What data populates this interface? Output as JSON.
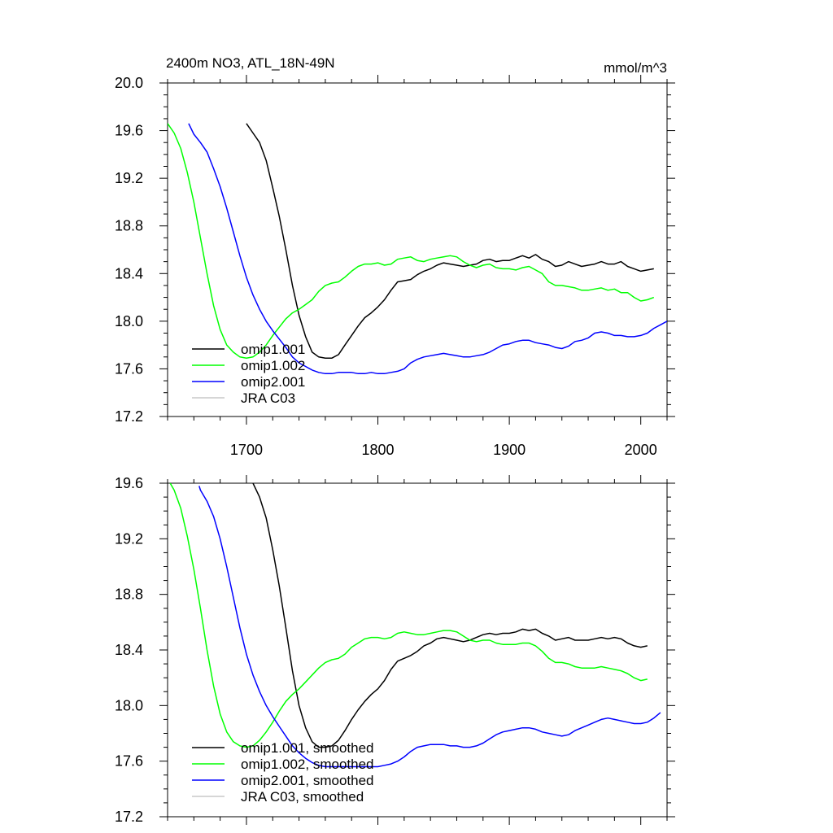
{
  "chart_data": [
    {
      "type": "line",
      "title_left": "2400m NO3, ATL_18N-49N",
      "title_right": "mmol/m^3",
      "xlim": [
        1640,
        2020
      ],
      "ylim": [
        17.2,
        20.0
      ],
      "x_ticks": [
        1700,
        1800,
        1900,
        2000
      ],
      "y_ticks": [
        17.2,
        17.6,
        18.0,
        18.4,
        18.8,
        19.2,
        19.6,
        20.0
      ],
      "y_tick_labels": [
        "17.2",
        "17.6",
        "18.0",
        "18.4",
        "18.8",
        "19.2",
        "19.6",
        "20.0"
      ],
      "x_tick_labels": [
        "1700",
        "1800",
        "1900",
        "2000"
      ],
      "show_x_tick_labels": true,
      "legend_position": "bottom-left",
      "series": [
        {
          "name": "omip1.001",
          "color": "#000000",
          "x": [
            1700,
            1705,
            1710,
            1715,
            1720,
            1725,
            1730,
            1735,
            1740,
            1745,
            1750,
            1755,
            1760,
            1765,
            1770,
            1775,
            1780,
            1785,
            1790,
            1795,
            1800,
            1805,
            1810,
            1815,
            1820,
            1825,
            1830,
            1835,
            1840,
            1845,
            1850,
            1855,
            1860,
            1865,
            1870,
            1875,
            1880,
            1885,
            1890,
            1895,
            1900,
            1905,
            1910,
            1915,
            1920,
            1925,
            1930,
            1935,
            1940,
            1945,
            1950,
            1955,
            1960,
            1965,
            1970,
            1975,
            1980,
            1985,
            1990,
            1995,
            2000,
            2005,
            2010
          ],
          "y": [
            19.66,
            19.58,
            19.5,
            19.35,
            19.12,
            18.88,
            18.6,
            18.3,
            18.05,
            17.87,
            17.74,
            17.7,
            17.69,
            17.69,
            17.72,
            17.8,
            17.88,
            17.96,
            18.03,
            18.07,
            18.12,
            18.18,
            18.26,
            18.33,
            18.34,
            18.35,
            18.39,
            18.42,
            18.44,
            18.47,
            18.49,
            18.48,
            18.47,
            18.46,
            18.47,
            18.48,
            18.51,
            18.52,
            18.5,
            18.51,
            18.51,
            18.53,
            18.55,
            18.53,
            18.56,
            18.52,
            18.5,
            18.46,
            18.47,
            18.5,
            18.48,
            18.46,
            18.47,
            18.48,
            18.5,
            18.48,
            18.48,
            18.5,
            18.46,
            18.44,
            18.42,
            18.43,
            18.44
          ]
        },
        {
          "name": "omip1.002",
          "color": "#00ff00",
          "x": [
            1640,
            1645,
            1650,
            1655,
            1660,
            1665,
            1670,
            1675,
            1680,
            1685,
            1690,
            1695,
            1700,
            1705,
            1710,
            1715,
            1720,
            1725,
            1730,
            1735,
            1740,
            1745,
            1750,
            1755,
            1760,
            1765,
            1770,
            1775,
            1780,
            1785,
            1790,
            1795,
            1800,
            1805,
            1810,
            1815,
            1820,
            1825,
            1830,
            1835,
            1840,
            1845,
            1850,
            1855,
            1860,
            1865,
            1870,
            1875,
            1880,
            1885,
            1890,
            1895,
            1900,
            1905,
            1910,
            1915,
            1920,
            1925,
            1930,
            1935,
            1940,
            1945,
            1950,
            1955,
            1960,
            1965,
            1970,
            1975,
            1980,
            1985,
            1990,
            1995,
            2000,
            2005,
            2010
          ],
          "y": [
            19.66,
            19.58,
            19.45,
            19.25,
            19.0,
            18.7,
            18.4,
            18.13,
            17.93,
            17.8,
            17.74,
            17.7,
            17.69,
            17.7,
            17.74,
            17.8,
            17.88,
            17.95,
            18.02,
            18.07,
            18.1,
            18.14,
            18.18,
            18.25,
            18.3,
            18.32,
            18.33,
            18.37,
            18.42,
            18.46,
            18.48,
            18.48,
            18.49,
            18.47,
            18.48,
            18.52,
            18.53,
            18.54,
            18.51,
            18.5,
            18.52,
            18.53,
            18.54,
            18.55,
            18.54,
            18.5,
            18.47,
            18.45,
            18.47,
            18.48,
            18.45,
            18.44,
            18.44,
            18.43,
            18.45,
            18.46,
            18.43,
            18.4,
            18.33,
            18.3,
            18.3,
            18.29,
            18.28,
            18.26,
            18.26,
            18.27,
            18.28,
            18.26,
            18.27,
            18.24,
            18.24,
            18.2,
            18.17,
            18.18,
            18.2
          ]
        },
        {
          "name": "omip2.001",
          "color": "#0000ff",
          "x": [
            1656,
            1660,
            1665,
            1670,
            1675,
            1680,
            1685,
            1690,
            1695,
            1700,
            1705,
            1710,
            1715,
            1720,
            1725,
            1730,
            1735,
            1740,
            1745,
            1750,
            1755,
            1760,
            1765,
            1770,
            1775,
            1780,
            1785,
            1790,
            1795,
            1800,
            1805,
            1810,
            1815,
            1820,
            1825,
            1830,
            1835,
            1840,
            1845,
            1850,
            1855,
            1860,
            1865,
            1870,
            1875,
            1880,
            1885,
            1890,
            1895,
            1900,
            1905,
            1910,
            1915,
            1920,
            1925,
            1930,
            1935,
            1940,
            1945,
            1950,
            1955,
            1960,
            1965,
            1970,
            1975,
            1980,
            1985,
            1990,
            1995,
            2000,
            2005,
            2010,
            2015,
            2020
          ],
          "y": [
            19.66,
            19.57,
            19.5,
            19.42,
            19.28,
            19.13,
            18.95,
            18.75,
            18.55,
            18.37,
            18.22,
            18.1,
            18.0,
            17.92,
            17.85,
            17.78,
            17.7,
            17.65,
            17.62,
            17.59,
            17.57,
            17.56,
            17.56,
            17.57,
            17.57,
            17.57,
            17.56,
            17.56,
            17.57,
            17.56,
            17.56,
            17.57,
            17.58,
            17.6,
            17.65,
            17.68,
            17.7,
            17.71,
            17.72,
            17.73,
            17.72,
            17.71,
            17.7,
            17.7,
            17.71,
            17.72,
            17.74,
            17.77,
            17.8,
            17.81,
            17.83,
            17.84,
            17.84,
            17.82,
            17.81,
            17.8,
            17.78,
            17.77,
            17.79,
            17.83,
            17.84,
            17.86,
            17.9,
            17.91,
            17.9,
            17.88,
            17.88,
            17.87,
            17.87,
            17.88,
            17.9,
            17.94,
            17.97,
            18.0
          ]
        },
        {
          "name": "JRA C03",
          "color": "#c8c8c8",
          "x": [],
          "y": []
        }
      ]
    },
    {
      "type": "line",
      "title_left": "",
      "title_right": "",
      "xlim": [
        1640,
        2020
      ],
      "ylim": [
        17.2,
        19.6
      ],
      "x_ticks": [
        1700,
        1800,
        1900,
        2000
      ],
      "y_ticks": [
        17.2,
        17.6,
        18.0,
        18.4,
        18.8,
        19.2,
        19.6
      ],
      "y_tick_labels": [
        "17.2",
        "17.6",
        "18.0",
        "18.4",
        "18.8",
        "19.2",
        "19.6"
      ],
      "x_tick_labels": [
        "",
        "",
        "",
        ""
      ],
      "show_x_tick_labels": false,
      "legend_position": "bottom-left",
      "series": [
        {
          "name": "omip1.001, smoothed",
          "color": "#000000",
          "x": [
            1705,
            1710,
            1715,
            1720,
            1725,
            1730,
            1735,
            1740,
            1745,
            1750,
            1755,
            1760,
            1765,
            1770,
            1775,
            1780,
            1785,
            1790,
            1795,
            1800,
            1805,
            1810,
            1815,
            1820,
            1825,
            1830,
            1835,
            1840,
            1845,
            1850,
            1855,
            1860,
            1865,
            1870,
            1875,
            1880,
            1885,
            1890,
            1895,
            1900,
            1905,
            1910,
            1915,
            1920,
            1925,
            1930,
            1935,
            1940,
            1945,
            1950,
            1955,
            1960,
            1965,
            1970,
            1975,
            1980,
            1985,
            1990,
            1995,
            2000,
            2005
          ],
          "y": [
            19.6,
            19.5,
            19.35,
            19.12,
            18.86,
            18.56,
            18.25,
            18.0,
            17.84,
            17.74,
            17.7,
            17.7,
            17.71,
            17.75,
            17.82,
            17.9,
            17.97,
            18.03,
            18.08,
            18.12,
            18.18,
            18.26,
            18.32,
            18.34,
            18.36,
            18.39,
            18.43,
            18.45,
            18.48,
            18.49,
            18.48,
            18.47,
            18.46,
            18.47,
            18.49,
            18.51,
            18.52,
            18.51,
            18.52,
            18.52,
            18.53,
            18.55,
            18.54,
            18.55,
            18.52,
            18.5,
            18.47,
            18.48,
            18.49,
            18.47,
            18.47,
            18.47,
            18.48,
            18.49,
            18.48,
            18.49,
            18.48,
            18.45,
            18.43,
            18.42,
            18.43
          ]
        },
        {
          "name": "omip1.002, smoothed",
          "color": "#00ff00",
          "x": [
            1642,
            1645,
            1650,
            1655,
            1660,
            1665,
            1670,
            1675,
            1680,
            1685,
            1690,
            1695,
            1700,
            1705,
            1710,
            1715,
            1720,
            1725,
            1730,
            1735,
            1740,
            1745,
            1750,
            1755,
            1760,
            1765,
            1770,
            1775,
            1780,
            1785,
            1790,
            1795,
            1800,
            1805,
            1810,
            1815,
            1820,
            1825,
            1830,
            1835,
            1840,
            1845,
            1850,
            1855,
            1860,
            1865,
            1870,
            1875,
            1880,
            1885,
            1890,
            1895,
            1900,
            1905,
            1910,
            1915,
            1920,
            1925,
            1930,
            1935,
            1940,
            1945,
            1950,
            1955,
            1960,
            1965,
            1970,
            1975,
            1980,
            1985,
            1990,
            1995,
            2000,
            2005
          ],
          "y": [
            19.6,
            19.55,
            19.42,
            19.22,
            18.98,
            18.7,
            18.4,
            18.14,
            17.94,
            17.81,
            17.74,
            17.71,
            17.7,
            17.71,
            17.75,
            17.81,
            17.88,
            17.96,
            18.03,
            18.08,
            18.12,
            18.17,
            18.22,
            18.27,
            18.31,
            18.33,
            18.34,
            18.37,
            18.42,
            18.45,
            18.48,
            18.49,
            18.49,
            18.48,
            18.49,
            18.52,
            18.53,
            18.52,
            18.51,
            18.51,
            18.52,
            18.53,
            18.54,
            18.54,
            18.53,
            18.5,
            18.47,
            18.46,
            18.47,
            18.47,
            18.45,
            18.44,
            18.44,
            18.44,
            18.45,
            18.45,
            18.43,
            18.39,
            18.34,
            18.31,
            18.31,
            18.3,
            18.28,
            18.27,
            18.27,
            18.27,
            18.28,
            18.27,
            18.26,
            18.25,
            18.23,
            18.2,
            18.18,
            18.19
          ]
        },
        {
          "name": "omip2.001, smoothed",
          "color": "#0000ff",
          "x": [
            1664,
            1665,
            1670,
            1675,
            1680,
            1685,
            1690,
            1695,
            1700,
            1705,
            1710,
            1715,
            1720,
            1725,
            1730,
            1735,
            1740,
            1745,
            1750,
            1755,
            1760,
            1765,
            1770,
            1775,
            1780,
            1785,
            1790,
            1795,
            1800,
            1805,
            1810,
            1815,
            1820,
            1825,
            1830,
            1835,
            1840,
            1845,
            1850,
            1855,
            1860,
            1865,
            1870,
            1875,
            1880,
            1885,
            1890,
            1895,
            1900,
            1905,
            1910,
            1915,
            1920,
            1925,
            1930,
            1935,
            1940,
            1945,
            1950,
            1955,
            1960,
            1965,
            1970,
            1975,
            1980,
            1985,
            1990,
            1995,
            2000,
            2005,
            2010,
            2015
          ],
          "y": [
            19.58,
            19.55,
            19.47,
            19.36,
            19.2,
            19.0,
            18.78,
            18.56,
            18.37,
            18.22,
            18.1,
            18.0,
            17.92,
            17.85,
            17.78,
            17.71,
            17.66,
            17.62,
            17.59,
            17.57,
            17.56,
            17.56,
            17.56,
            17.56,
            17.56,
            17.56,
            17.56,
            17.56,
            17.56,
            17.57,
            17.58,
            17.6,
            17.63,
            17.67,
            17.7,
            17.71,
            17.72,
            17.72,
            17.72,
            17.71,
            17.71,
            17.7,
            17.7,
            17.71,
            17.73,
            17.76,
            17.79,
            17.81,
            17.82,
            17.83,
            17.84,
            17.84,
            17.83,
            17.81,
            17.8,
            17.79,
            17.78,
            17.79,
            17.82,
            17.84,
            17.86,
            17.88,
            17.9,
            17.91,
            17.9,
            17.89,
            17.88,
            17.87,
            17.87,
            17.88,
            17.91,
            17.95
          ]
        },
        {
          "name": "JRA C03, smoothed",
          "color": "#c8c8c8",
          "x": [],
          "y": []
        }
      ]
    }
  ]
}
